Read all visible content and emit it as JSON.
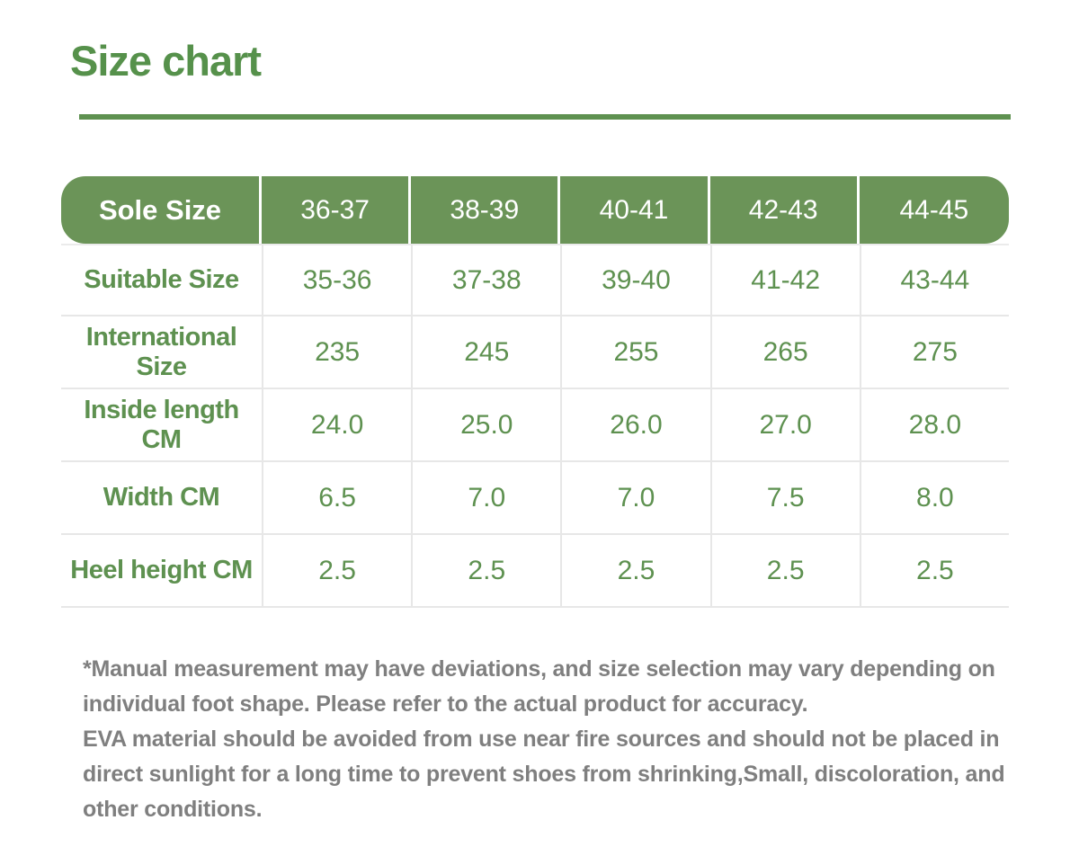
{
  "title": "Size chart",
  "table": {
    "header": [
      "Sole Size",
      "36-37",
      "38-39",
      "40-41",
      "42-43",
      "44-45"
    ],
    "rows": [
      {
        "label": "Suitable Size",
        "values": [
          "35-36",
          "37-38",
          "39-40",
          "41-42",
          "43-44"
        ]
      },
      {
        "label": "International Size",
        "values": [
          "235",
          "245",
          "255",
          "265",
          "275"
        ]
      },
      {
        "label": "Inside length CM",
        "values": [
          "24.0",
          "25.0",
          "26.0",
          "27.0",
          "28.0"
        ]
      },
      {
        "label": "Width CM",
        "values": [
          "6.5",
          "7.0",
          "7.0",
          "7.5",
          "8.0"
        ]
      },
      {
        "label": "Heel height CM",
        "values": [
          "2.5",
          "2.5",
          "2.5",
          "2.5",
          "2.5"
        ]
      }
    ]
  },
  "notes": [
    "*Manual measurement may have deviations, and size selection may vary depending on individual foot shape. Please refer to the actual product for accuracy.",
    "EVA material should be avoided from use near fire sources and should not be placed in direct sunlight for a long time to prevent shoes from shrinking,Small, discoloration, and other conditions."
  ],
  "colors": {
    "title_green": "#56914b",
    "header_bg_green": "#6b9458",
    "cell_text_green": "#5e9150",
    "divider_gray": "#e7e7e7",
    "note_gray": "#7f7f7f",
    "background": "#ffffff"
  }
}
